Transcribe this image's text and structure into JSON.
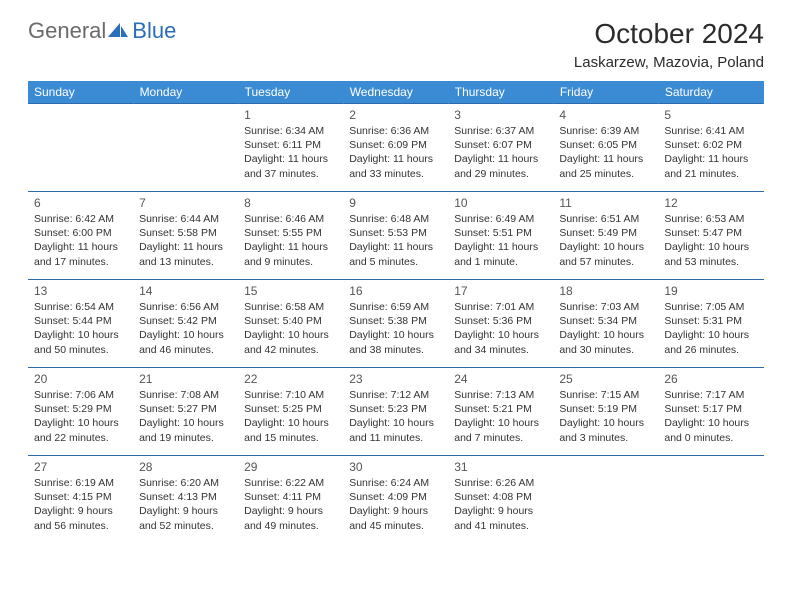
{
  "logo": {
    "text_gen": "General",
    "text_blue": "Blue",
    "shape_color": "#2a6db8"
  },
  "title": "October 2024",
  "location": "Laskarzew, Mazovia, Poland",
  "colors": {
    "header_bg": "#3b8bd4",
    "header_text": "#ffffff",
    "row_border": "#2e6aa8",
    "daynum": "#555555",
    "body_text": "#333333"
  },
  "weekdays": [
    "Sunday",
    "Monday",
    "Tuesday",
    "Wednesday",
    "Thursday",
    "Friday",
    "Saturday"
  ],
  "weeks": [
    [
      null,
      null,
      {
        "n": "1",
        "sr": "6:34 AM",
        "ss": "6:11 PM",
        "dl": "11 hours and 37 minutes."
      },
      {
        "n": "2",
        "sr": "6:36 AM",
        "ss": "6:09 PM",
        "dl": "11 hours and 33 minutes."
      },
      {
        "n": "3",
        "sr": "6:37 AM",
        "ss": "6:07 PM",
        "dl": "11 hours and 29 minutes."
      },
      {
        "n": "4",
        "sr": "6:39 AM",
        "ss": "6:05 PM",
        "dl": "11 hours and 25 minutes."
      },
      {
        "n": "5",
        "sr": "6:41 AM",
        "ss": "6:02 PM",
        "dl": "11 hours and 21 minutes."
      }
    ],
    [
      {
        "n": "6",
        "sr": "6:42 AM",
        "ss": "6:00 PM",
        "dl": "11 hours and 17 minutes."
      },
      {
        "n": "7",
        "sr": "6:44 AM",
        "ss": "5:58 PM",
        "dl": "11 hours and 13 minutes."
      },
      {
        "n": "8",
        "sr": "6:46 AM",
        "ss": "5:55 PM",
        "dl": "11 hours and 9 minutes."
      },
      {
        "n": "9",
        "sr": "6:48 AM",
        "ss": "5:53 PM",
        "dl": "11 hours and 5 minutes."
      },
      {
        "n": "10",
        "sr": "6:49 AM",
        "ss": "5:51 PM",
        "dl": "11 hours and 1 minute."
      },
      {
        "n": "11",
        "sr": "6:51 AM",
        "ss": "5:49 PM",
        "dl": "10 hours and 57 minutes."
      },
      {
        "n": "12",
        "sr": "6:53 AM",
        "ss": "5:47 PM",
        "dl": "10 hours and 53 minutes."
      }
    ],
    [
      {
        "n": "13",
        "sr": "6:54 AM",
        "ss": "5:44 PM",
        "dl": "10 hours and 50 minutes."
      },
      {
        "n": "14",
        "sr": "6:56 AM",
        "ss": "5:42 PM",
        "dl": "10 hours and 46 minutes."
      },
      {
        "n": "15",
        "sr": "6:58 AM",
        "ss": "5:40 PM",
        "dl": "10 hours and 42 minutes."
      },
      {
        "n": "16",
        "sr": "6:59 AM",
        "ss": "5:38 PM",
        "dl": "10 hours and 38 minutes."
      },
      {
        "n": "17",
        "sr": "7:01 AM",
        "ss": "5:36 PM",
        "dl": "10 hours and 34 minutes."
      },
      {
        "n": "18",
        "sr": "7:03 AM",
        "ss": "5:34 PM",
        "dl": "10 hours and 30 minutes."
      },
      {
        "n": "19",
        "sr": "7:05 AM",
        "ss": "5:31 PM",
        "dl": "10 hours and 26 minutes."
      }
    ],
    [
      {
        "n": "20",
        "sr": "7:06 AM",
        "ss": "5:29 PM",
        "dl": "10 hours and 22 minutes."
      },
      {
        "n": "21",
        "sr": "7:08 AM",
        "ss": "5:27 PM",
        "dl": "10 hours and 19 minutes."
      },
      {
        "n": "22",
        "sr": "7:10 AM",
        "ss": "5:25 PM",
        "dl": "10 hours and 15 minutes."
      },
      {
        "n": "23",
        "sr": "7:12 AM",
        "ss": "5:23 PM",
        "dl": "10 hours and 11 minutes."
      },
      {
        "n": "24",
        "sr": "7:13 AM",
        "ss": "5:21 PM",
        "dl": "10 hours and 7 minutes."
      },
      {
        "n": "25",
        "sr": "7:15 AM",
        "ss": "5:19 PM",
        "dl": "10 hours and 3 minutes."
      },
      {
        "n": "26",
        "sr": "7:17 AM",
        "ss": "5:17 PM",
        "dl": "10 hours and 0 minutes."
      }
    ],
    [
      {
        "n": "27",
        "sr": "6:19 AM",
        "ss": "4:15 PM",
        "dl": "9 hours and 56 minutes."
      },
      {
        "n": "28",
        "sr": "6:20 AM",
        "ss": "4:13 PM",
        "dl": "9 hours and 52 minutes."
      },
      {
        "n": "29",
        "sr": "6:22 AM",
        "ss": "4:11 PM",
        "dl": "9 hours and 49 minutes."
      },
      {
        "n": "30",
        "sr": "6:24 AM",
        "ss": "4:09 PM",
        "dl": "9 hours and 45 minutes."
      },
      {
        "n": "31",
        "sr": "6:26 AM",
        "ss": "4:08 PM",
        "dl": "9 hours and 41 minutes."
      },
      null,
      null
    ]
  ]
}
